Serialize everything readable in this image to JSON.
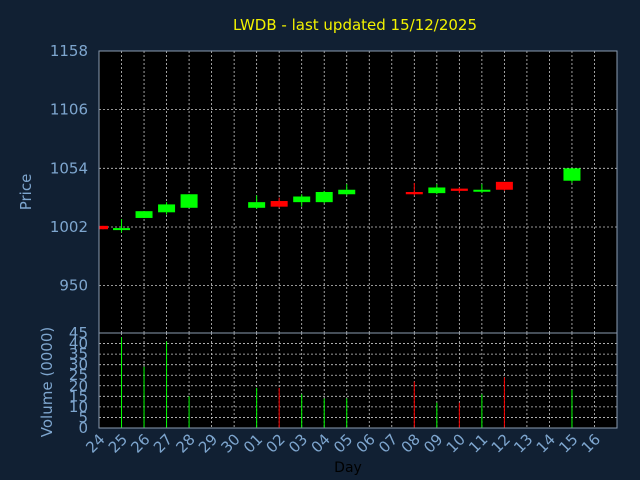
{
  "chart_data": {
    "type": "candlestick",
    "title": "LWDB - last updated 15/12/2025",
    "xlabel": "Day",
    "ylabel": "Price",
    "volume_label": "Volume (0000)",
    "x_ticks": [
      "24",
      "25",
      "26",
      "27",
      "28",
      "29",
      "30",
      "01",
      "02",
      "03",
      "04",
      "05",
      "06",
      "07",
      "08",
      "09",
      "10",
      "11",
      "12",
      "13",
      "14",
      "15",
      "16"
    ],
    "price_ticks": [
      950,
      1002,
      1054,
      1106,
      1158
    ],
    "price_range": [
      908,
      1158
    ],
    "volume_ticks": [
      0,
      5,
      10,
      15,
      20,
      25,
      30,
      35,
      40,
      45
    ],
    "volume_range": [
      0,
      45
    ],
    "grid": true,
    "colors": {
      "up": "#00ff00",
      "down": "#ff0000",
      "title": "#f2f200",
      "axis_text": "#7ea6cf",
      "background": "#112033",
      "grid": "#c8c8c8"
    },
    "candles": [
      {
        "day": "24",
        "open": 1003,
        "close": 1000,
        "high": 1003,
        "low": 1000,
        "volume": 0
      },
      {
        "day": "25",
        "open": 1000,
        "close": 1001,
        "high": 1009,
        "low": 997,
        "volume": 43
      },
      {
        "day": "26",
        "open": 1010,
        "close": 1016,
        "high": 1016,
        "low": 1010,
        "volume": 29
      },
      {
        "day": "27",
        "open": 1015,
        "close": 1022,
        "high": 1024,
        "low": 1013,
        "volume": 41
      },
      {
        "day": "28",
        "open": 1019,
        "close": 1031,
        "high": 1031,
        "low": 1019,
        "volume": 15
      },
      {
        "day": "01",
        "open": 1019,
        "close": 1024,
        "high": 1030,
        "low": 1018,
        "volume": 19
      },
      {
        "day": "02",
        "open": 1025,
        "close": 1020,
        "high": 1028,
        "low": 1019,
        "volume": 19
      },
      {
        "day": "03",
        "open": 1024,
        "close": 1029,
        "high": 1031,
        "low": 1020,
        "volume": 16
      },
      {
        "day": "04",
        "open": 1024,
        "close": 1033,
        "high": 1034,
        "low": 1023,
        "volume": 14
      },
      {
        "day": "05",
        "open": 1031,
        "close": 1035,
        "high": 1040,
        "low": 1030,
        "volume": 14
      },
      {
        "day": "08",
        "open": 1033,
        "close": 1031,
        "high": 1041,
        "low": 1030,
        "volume": 22
      },
      {
        "day": "09",
        "open": 1032,
        "close": 1037,
        "high": 1040,
        "low": 1031,
        "volume": 12
      },
      {
        "day": "10",
        "open": 1036,
        "close": 1034,
        "high": 1037,
        "low": 1032,
        "volume": 12
      },
      {
        "day": "11",
        "open": 1034,
        "close": 1035,
        "high": 1040,
        "low": 1032,
        "volume": 16
      },
      {
        "day": "12",
        "open": 1042,
        "close": 1035,
        "high": 1042,
        "low": 1034,
        "volume": 24
      },
      {
        "day": "15",
        "open": 1043,
        "close": 1054,
        "high": 1054,
        "low": 1041,
        "volume": 18
      }
    ]
  }
}
